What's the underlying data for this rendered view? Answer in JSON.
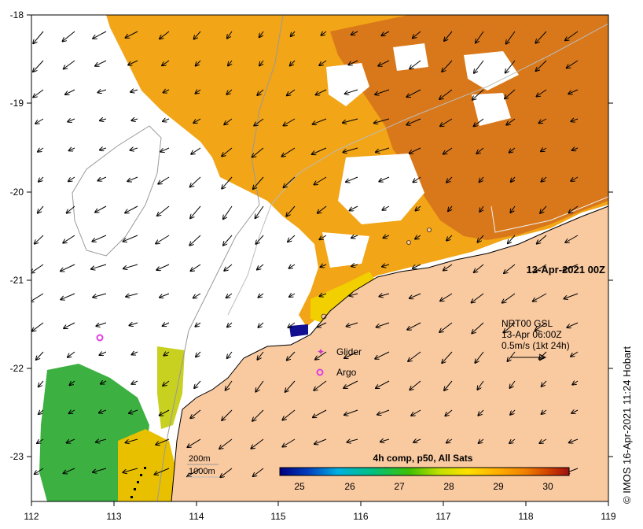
{
  "map": {
    "timestamp_label": "13-Apr-2021 00Z",
    "x_ticks": [
      "112",
      "113",
      "114",
      "115",
      "116",
      "117",
      "118",
      "119"
    ],
    "y_ticks": [
      "-18",
      "-19",
      "-20",
      "-21",
      "-22",
      "-23"
    ],
    "current_legend": {
      "line1": "NRT00 GSL",
      "line2": "13-Apr 06:00Z",
      "line3": "0.5m/s (1kt 24h)"
    },
    "symbols_legend": {
      "glider": "Glider",
      "argo": "Argo"
    },
    "depth_contours": {
      "label_200": "200m",
      "label_1000": "1000m"
    },
    "colors": {
      "land": "#f9c9a0",
      "glider": "#cc33cc",
      "argo": "#e040e0",
      "contour": "#999999",
      "ocean_blank": "#ffffff"
    }
  },
  "colorbar": {
    "title": "4h comp, p50, All Sats",
    "ticks": [
      "25",
      "26",
      "27",
      "28",
      "29",
      "30"
    ],
    "range": [
      24.5,
      30.5
    ],
    "stops": [
      "#000080",
      "#0040c0",
      "#00b0e0",
      "#00c080",
      "#40c000",
      "#c0e000",
      "#ffe000",
      "#ffb000",
      "#f08000",
      "#d04000",
      "#a01010"
    ]
  },
  "credit": "© IMOS 16-Apr-2021 11:24 Hobart"
}
